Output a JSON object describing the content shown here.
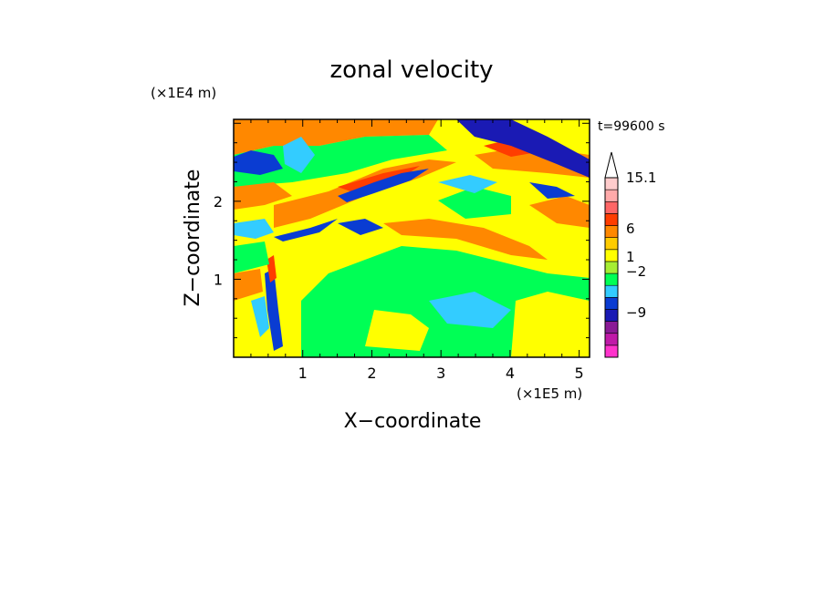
{
  "chart_data": {
    "type": "heatmap",
    "title": "zonal velocity",
    "xlabel": "X−coordinate",
    "ylabel": "Z−coordinate",
    "x_unit": "(×1E5 m)",
    "y_unit": "(×1E4 m)",
    "time_label": "t=99600 s",
    "xlim": [
      0,
      5.15
    ],
    "ylim": [
      0,
      3.05
    ],
    "x_ticks": [
      1,
      2,
      3,
      4,
      5
    ],
    "y_ticks": [
      1,
      2
    ],
    "x_tick_labels": [
      "1",
      "2",
      "3",
      "4",
      "5"
    ],
    "y_tick_labels": [
      "1",
      "2"
    ],
    "colorbar": {
      "labeled_levels": [
        "15.1",
        "6",
        "1",
        "−2",
        "−9"
      ],
      "colors": [
        "#ff33cc",
        "#c01aa8",
        "#8a1a96",
        "#1a1ab4",
        "#0a3cd2",
        "#33ccff",
        "#00ff55",
        "#a6ee33",
        "#ffff00",
        "#ffcc00",
        "#ff8800",
        "#ff3d00",
        "#ff6666",
        "#ffaaaa",
        "#ffcccc"
      ],
      "has_max_triangle": true
    }
  }
}
